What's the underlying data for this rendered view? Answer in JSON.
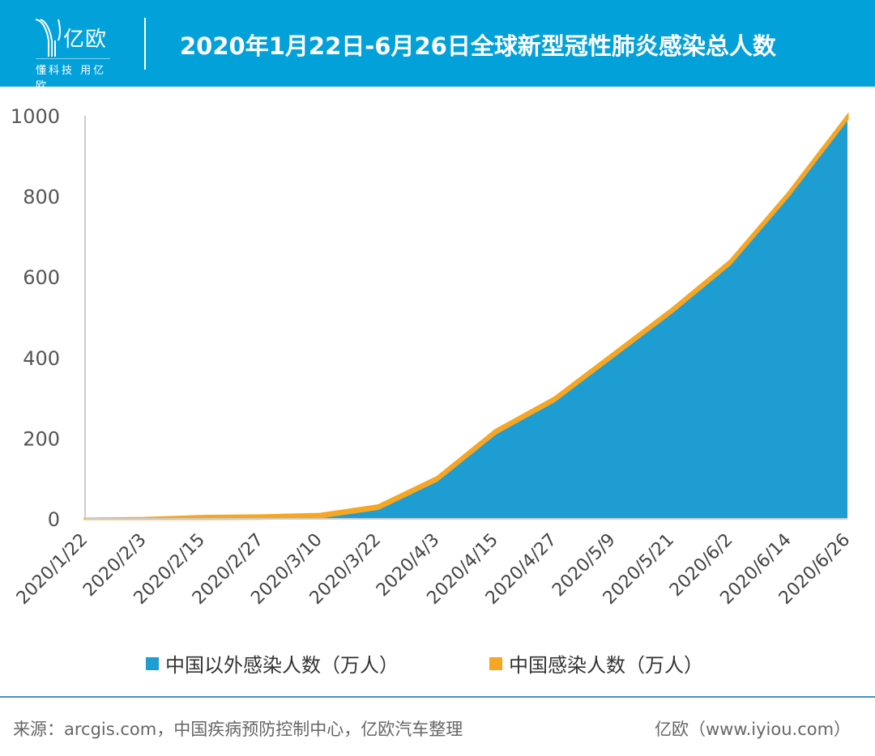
{
  "header": {
    "brand": "亿欧",
    "tagline": "懂科技 用亿欧",
    "title": "2020年1月22日-6月26日全球新型冠性肺炎感染总人数"
  },
  "colors": {
    "header": "#03a1d9",
    "outside_china": "#1e9dd3",
    "china": "#f5a623"
  },
  "chart_data": {
    "type": "area",
    "stacked": true,
    "x": [
      "2020/1/22",
      "2020/2/3",
      "2020/2/15",
      "2020/2/27",
      "2020/3/10",
      "2020/3/22",
      "2020/4/3",
      "2020/4/15",
      "2020/4/27",
      "2020/5/9",
      "2020/5/21",
      "2020/6/2",
      "2020/6/14",
      "2020/6/26"
    ],
    "series": [
      {
        "name": "中国以外感染人数（万人）",
        "values": [
          0,
          0.1,
          0.1,
          0.4,
          3.8,
          25,
          95,
          212,
          292,
          402,
          512,
          632,
          802,
          992
        ]
      },
      {
        "name": "中国感染人数（万人）",
        "values": [
          0.06,
          1.7,
          6.8,
          7.9,
          8.1,
          8.1,
          8.2,
          8.3,
          8.3,
          8.3,
          8.3,
          8.3,
          8.3,
          8.3
        ]
      }
    ],
    "yticks": [
      "0",
      "200",
      "400",
      "600",
      "800",
      "1000"
    ],
    "ylim": [
      0,
      1000
    ],
    "legend": "bottom"
  },
  "footer": {
    "source": "来源：arcgis.com，中国疾病预防控制中心，亿欧汽车整理",
    "credit": "亿欧（www.iyiou.com）"
  }
}
